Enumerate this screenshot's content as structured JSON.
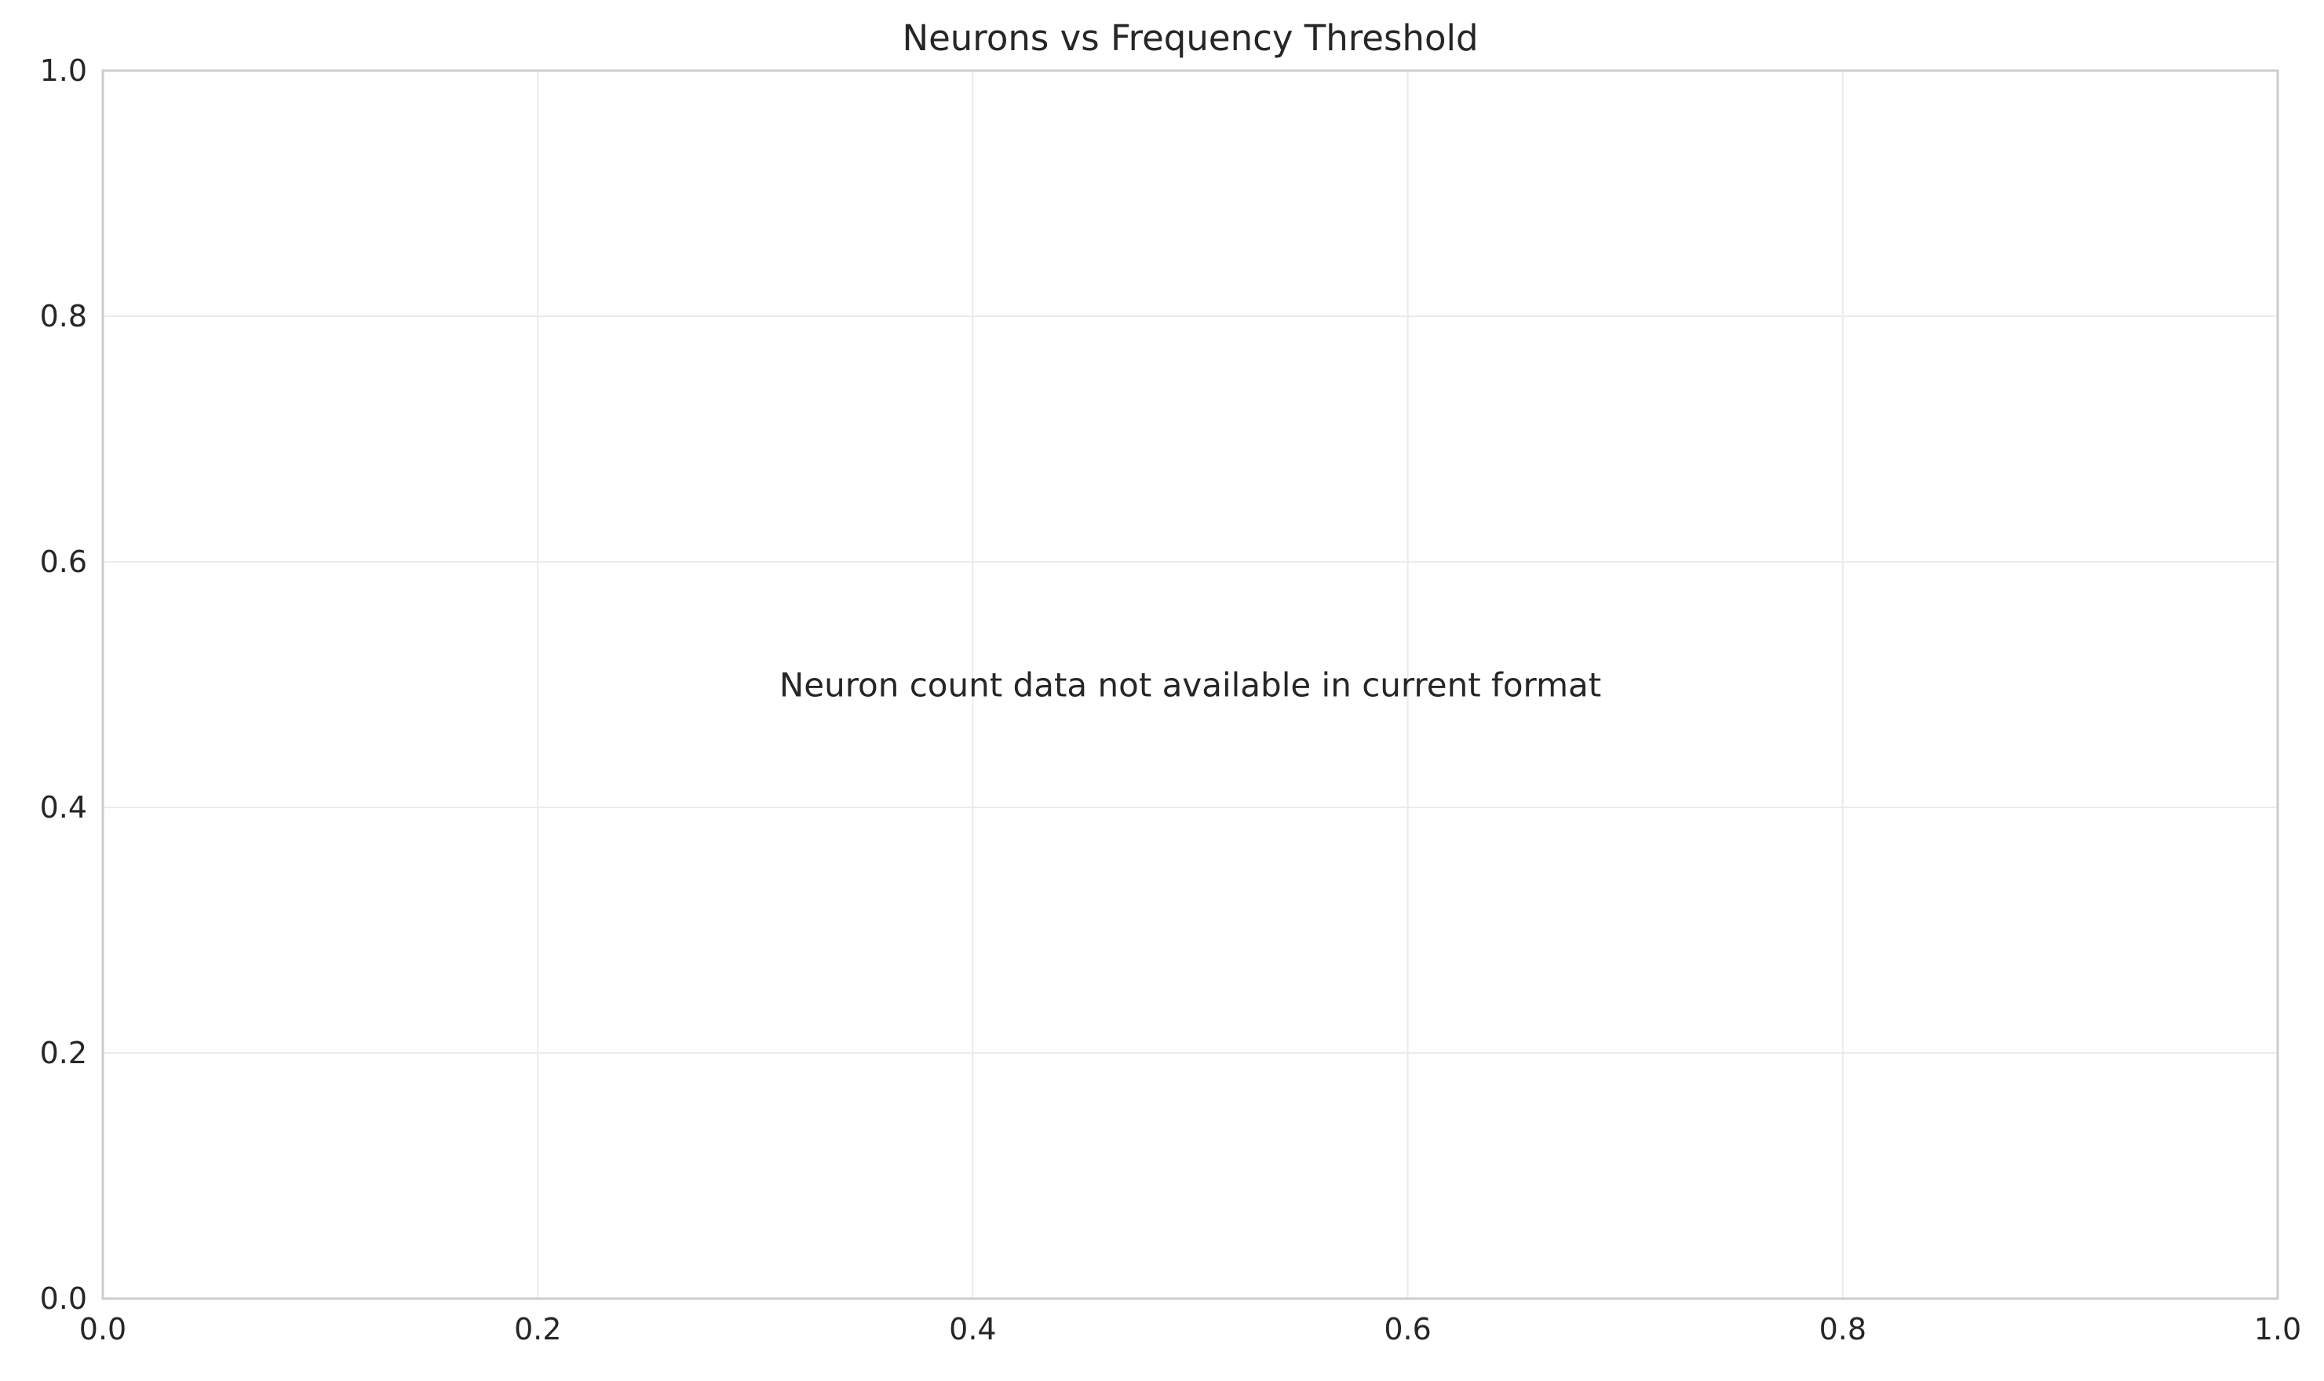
{
  "chart_data": {
    "type": "line",
    "title": "Neurons vs Frequency Threshold",
    "xlabel": "",
    "ylabel": "",
    "xlim": [
      0.0,
      1.0
    ],
    "ylim": [
      0.0,
      1.0
    ],
    "x_ticks": [
      "0.0",
      "0.2",
      "0.4",
      "0.6",
      "0.8",
      "1.0"
    ],
    "y_ticks": [
      "0.0",
      "0.2",
      "0.4",
      "0.6",
      "0.8",
      "1.0"
    ],
    "series": [],
    "grid": true,
    "legend": "none",
    "annotation": "Neuron count data not available in current format",
    "colors": {
      "grid": "#ebebeb",
      "frame": "#cccccc",
      "text": "#262626"
    }
  }
}
